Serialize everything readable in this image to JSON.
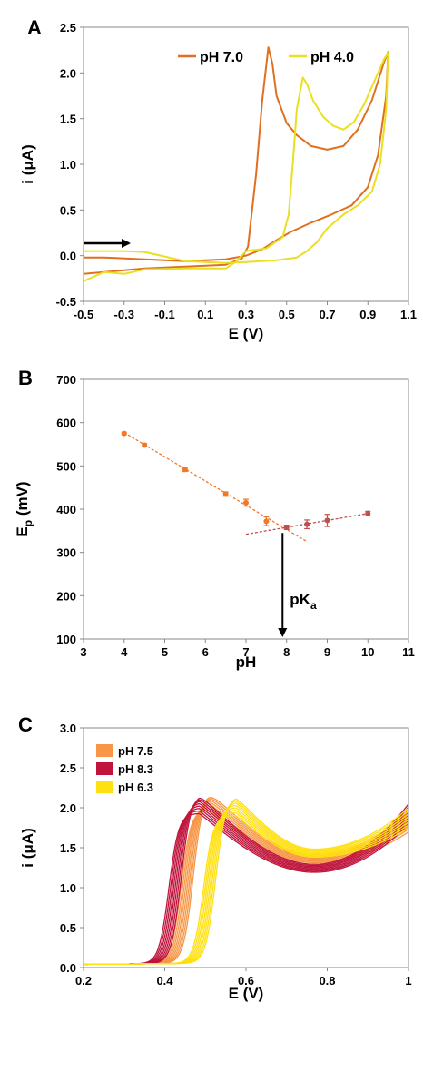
{
  "panels": {
    "a": {
      "letter": "A"
    },
    "b": {
      "letter": "B",
      "pka_label": "pK",
      "pka_sub": "a"
    },
    "c": {
      "letter": "C"
    }
  },
  "chart_data": [
    {
      "type": "line",
      "panel": "A",
      "xlabel": "E (V)",
      "ylabel": "i (μA)",
      "xlim": [
        -0.5,
        1.1
      ],
      "ylim": [
        -0.5,
        2.5
      ],
      "xticks": [
        "-0.5",
        "-0.3",
        "-0.1",
        "0.1",
        "0.3",
        "0.5",
        "0.7",
        "0.9",
        "1.1"
      ],
      "yticks": [
        "-0.5",
        "0.0",
        "0.5",
        "1.0",
        "1.5",
        "2.0",
        "2.5"
      ],
      "legend_position": "top-right",
      "scan_direction_arrow": "right",
      "series": [
        {
          "name": "pH 7.0",
          "color": "#E07020",
          "points": [
            [
              -0.5,
              -0.2
            ],
            [
              -0.4,
              -0.18
            ],
            [
              -0.2,
              -0.14
            ],
            [
              0.0,
              -0.12
            ],
            [
              0.2,
              -0.1
            ],
            [
              0.28,
              -0.03
            ],
            [
              0.31,
              0.1
            ],
            [
              0.35,
              0.9
            ],
            [
              0.38,
              1.7
            ],
            [
              0.41,
              2.28
            ],
            [
              0.43,
              2.1
            ],
            [
              0.45,
              1.75
            ],
            [
              0.5,
              1.45
            ],
            [
              0.55,
              1.32
            ],
            [
              0.62,
              1.2
            ],
            [
              0.7,
              1.16
            ],
            [
              0.78,
              1.2
            ],
            [
              0.85,
              1.38
            ],
            [
              0.92,
              1.7
            ],
            [
              0.98,
              2.12
            ],
            [
              1.0,
              2.23
            ],
            [
              0.99,
              1.75
            ],
            [
              0.95,
              1.1
            ],
            [
              0.9,
              0.75
            ],
            [
              0.82,
              0.55
            ],
            [
              0.72,
              0.45
            ],
            [
              0.62,
              0.36
            ],
            [
              0.52,
              0.26
            ],
            [
              0.45,
              0.17
            ],
            [
              0.38,
              0.07
            ],
            [
              0.3,
              0.0
            ],
            [
              0.2,
              -0.04
            ],
            [
              0.0,
              -0.06
            ],
            [
              -0.2,
              -0.04
            ],
            [
              -0.4,
              -0.02
            ],
            [
              -0.5,
              -0.02
            ]
          ]
        },
        {
          "name": "pH 4.0",
          "color": "#E8E020",
          "points": [
            [
              -0.5,
              -0.28
            ],
            [
              -0.4,
              -0.18
            ],
            [
              -0.3,
              -0.2
            ],
            [
              -0.2,
              -0.15
            ],
            [
              0.0,
              -0.14
            ],
            [
              0.2,
              -0.14
            ],
            [
              0.25,
              -0.07
            ],
            [
              0.3,
              0.05
            ],
            [
              0.4,
              0.08
            ],
            [
              0.48,
              0.2
            ],
            [
              0.51,
              0.45
            ],
            [
              0.53,
              1.0
            ],
            [
              0.55,
              1.6
            ],
            [
              0.58,
              1.95
            ],
            [
              0.6,
              1.88
            ],
            [
              0.63,
              1.7
            ],
            [
              0.68,
              1.52
            ],
            [
              0.73,
              1.42
            ],
            [
              0.78,
              1.38
            ],
            [
              0.83,
              1.46
            ],
            [
              0.88,
              1.65
            ],
            [
              0.93,
              1.9
            ],
            [
              0.98,
              2.15
            ],
            [
              1.0,
              2.22
            ],
            [
              0.99,
              1.6
            ],
            [
              0.96,
              1.0
            ],
            [
              0.92,
              0.7
            ],
            [
              0.85,
              0.55
            ],
            [
              0.78,
              0.45
            ],
            [
              0.7,
              0.3
            ],
            [
              0.65,
              0.15
            ],
            [
              0.6,
              0.05
            ],
            [
              0.55,
              -0.02
            ],
            [
              0.45,
              -0.05
            ],
            [
              0.3,
              -0.07
            ],
            [
              0.2,
              -0.08
            ],
            [
              0.0,
              -0.06
            ],
            [
              -0.2,
              0.04
            ],
            [
              -0.3,
              0.05
            ],
            [
              -0.5,
              0.05
            ]
          ]
        }
      ]
    },
    {
      "type": "scatter",
      "panel": "B",
      "xlabel": "pH",
      "ylabel_main": "E",
      "ylabel_sub": "p",
      "ylabel_unit": " (mV)",
      "xlim": [
        3,
        11
      ],
      "ylim": [
        100,
        700
      ],
      "xticks": [
        "3",
        "4",
        "5",
        "6",
        "7",
        "8",
        "9",
        "10",
        "11"
      ],
      "yticks": [
        "100",
        "200",
        "300",
        "400",
        "500",
        "600",
        "700"
      ],
      "pka_x": 7.9,
      "series": [
        {
          "color": "#F07828",
          "x": [
            4.0,
            4.5,
            5.5,
            6.5,
            7.0,
            7.5
          ],
          "y": [
            575,
            548,
            492,
            435,
            415,
            372
          ],
          "err": [
            3,
            4,
            5,
            5,
            8,
            10
          ]
        },
        {
          "color": "#C05050",
          "x": [
            8.0,
            8.5,
            9.0,
            10.0
          ],
          "y": [
            358,
            365,
            374,
            390
          ],
          "err": [
            5,
            10,
            14,
            5
          ]
        }
      ],
      "fits": [
        {
          "color": "#F07828",
          "x": [
            4.0,
            8.5
          ],
          "y": [
            577,
            325
          ]
        },
        {
          "color": "#C05050",
          "x": [
            7.0,
            10.0
          ],
          "y": [
            342,
            390
          ]
        }
      ]
    },
    {
      "type": "line",
      "panel": "C",
      "xlabel": "E (V)",
      "ylabel": "i (μA)",
      "xlim": [
        0.2,
        1.0
      ],
      "ylim": [
        0.0,
        3.0
      ],
      "xticks": [
        "0.2",
        "0.4",
        "0.6",
        "0.8",
        "1"
      ],
      "yticks": [
        "0.0",
        "0.5",
        "1.0",
        "1.5",
        "2.0",
        "2.5",
        "3.0"
      ],
      "legend_position": "top-left",
      "series": [
        {
          "name": "pH 7.5",
          "color": "#F79646",
          "onset": 0.455,
          "peak_x": 0.505,
          "peak_y": 2.05,
          "min_y": 1.3,
          "end_y": 1.75,
          "replicates": 8
        },
        {
          "name": "pH 8.3",
          "color": "#C0143C",
          "onset": 0.425,
          "peak_x": 0.485,
          "peak_y": 2.0,
          "min_y": 1.18,
          "end_y": 1.85,
          "replicates": 8
        },
        {
          "name": "pH 6.3",
          "color": "#FFE010",
          "onset": 0.51,
          "peak_x": 0.575,
          "peak_y": 1.97,
          "min_y": 1.37,
          "end_y": 1.8,
          "replicates": 8
        }
      ]
    }
  ]
}
